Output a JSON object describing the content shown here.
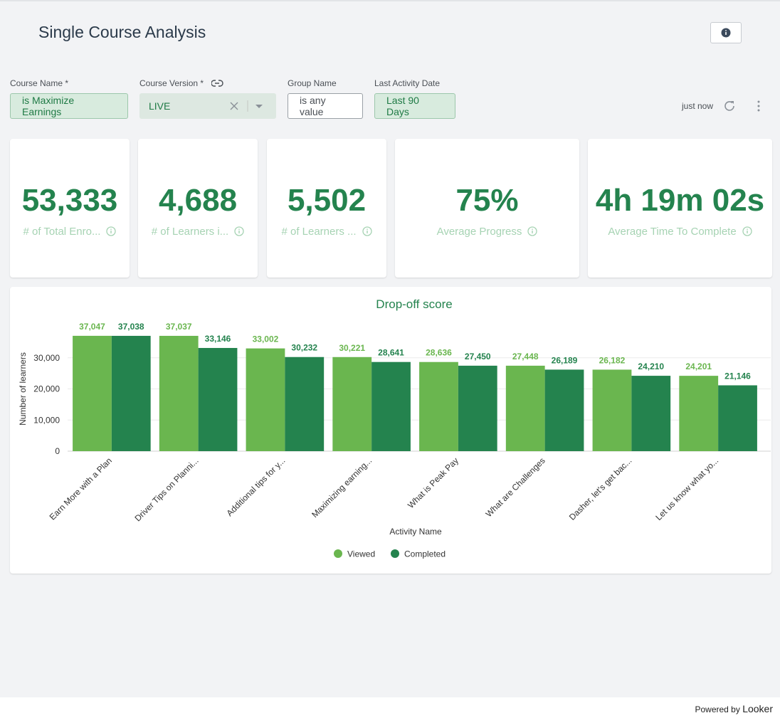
{
  "header": {
    "title": "Single Course Analysis"
  },
  "filters": [
    {
      "label": "Course Name *",
      "value": "is Maximize Earnings"
    },
    {
      "label": "Course Version *",
      "value": "LIVE"
    },
    {
      "label": "Group Name",
      "value": "is any value"
    },
    {
      "label": "Last Activity Date",
      "value": "Last 90 Days"
    }
  ],
  "status": "just now",
  "tiles": [
    {
      "value": "53,333",
      "label": "# of Total Enro..."
    },
    {
      "value": "4,688",
      "label": "# of Learners i..."
    },
    {
      "value": "5,502",
      "label": "# of Learners ..."
    },
    {
      "value": "75%",
      "label": "Average Progress"
    },
    {
      "value": "4h 19m 02s",
      "label": "Average Time To Complete"
    }
  ],
  "chart_data": {
    "type": "bar",
    "title": "Drop-off score",
    "x_label": "Activity Name",
    "y_label": "Number of learners",
    "categories": [
      "Earn More with a Plan",
      "Driver Tips on Planni...",
      "Additional tips for y...",
      "Maximizing earning...",
      "What is Peak Pay",
      "What are Challenges",
      "Dasher, let's get bac...",
      "Let us know what yo..."
    ],
    "series": [
      {
        "name": "Viewed",
        "color": "#6ab64f",
        "values": [
          37047,
          37037,
          33002,
          30221,
          28636,
          27448,
          26182,
          24201
        ],
        "value_labels": [
          "37,047",
          "37,037",
          "33,002",
          "30,221",
          "28,636",
          "27,448",
          "26,182",
          "24,201"
        ]
      },
      {
        "name": "Completed",
        "color": "#24834e",
        "values": [
          37038,
          33146,
          30232,
          28641,
          27450,
          26189,
          24210,
          21146
        ],
        "value_labels": [
          "37,038",
          "33,146",
          "30,232",
          "28,641",
          "27,450",
          "26,189",
          "24,210",
          "21,146"
        ]
      }
    ],
    "ylim": [
      0,
      40000
    ],
    "yticks": [
      0,
      {
        "value": 10000,
        "label": "10,000"
      },
      {
        "value": 20000,
        "label": "20,000"
      },
      {
        "value": 30000,
        "label": "30,000"
      }
    ],
    "grid": true,
    "legend": "bottom"
  },
  "footer": {
    "text": "Powered by",
    "brand": "Looker"
  }
}
